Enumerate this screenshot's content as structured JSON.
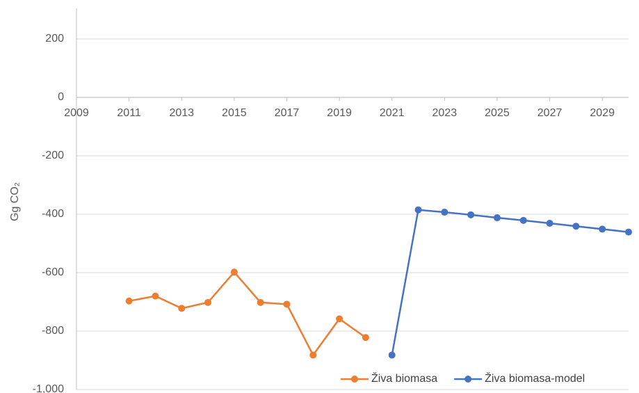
{
  "chart_data": {
    "type": "line",
    "y_label": "Gg CO₂",
    "x": [
      2011,
      2012,
      2013,
      2014,
      2015,
      2016,
      2017,
      2018,
      2019,
      2020,
      2021,
      2022,
      2023,
      2024,
      2025,
      2026,
      2027,
      2028,
      2029,
      2030
    ],
    "series": [
      {
        "name": "Živa biomasa",
        "color": "#ed7d31",
        "values": [
          -697,
          -680,
          -722,
          -702,
          -598,
          -702,
          -708,
          -882,
          -758,
          -822,
          null,
          null,
          null,
          null,
          null,
          null,
          null,
          null,
          null,
          null
        ]
      },
      {
        "name": "Živa biomasa-model",
        "color": "#4472c4",
        "values": [
          null,
          null,
          null,
          null,
          null,
          null,
          null,
          null,
          null,
          null,
          -882,
          -385,
          -393,
          -402,
          -412,
          -421,
          -431,
          -441,
          -451,
          -461
        ]
      }
    ],
    "xlim": [
      2009,
      2030
    ],
    "xticks": [
      2009,
      2011,
      2013,
      2015,
      2017,
      2019,
      2021,
      2023,
      2025,
      2027,
      2029
    ],
    "ylim": [
      -1000,
      300
    ],
    "yticks": [
      {
        "value": -1000,
        "label": "-1,000"
      },
      -800,
      -600,
      -400,
      -200,
      0,
      200
    ],
    "grid": true,
    "legend": "bottom-right"
  }
}
